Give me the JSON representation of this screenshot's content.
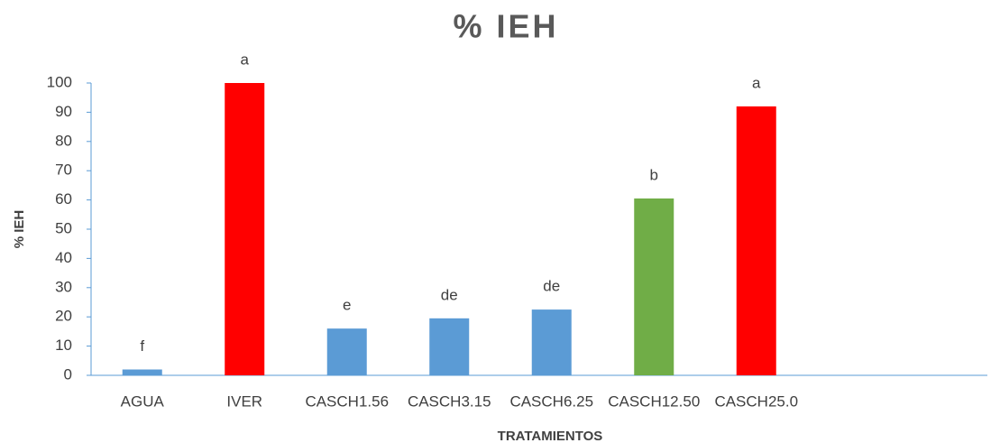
{
  "chart_data": {
    "type": "bar",
    "title": "% IEH",
    "x_label": "TRATAMIENTOS",
    "y_label": "% IEH",
    "categories": [
      "AGUA",
      "IVER",
      "CASCH1.56",
      "CASCH3.15",
      "CASCH6.25",
      "CASCH12.50",
      "CASCH25.0"
    ],
    "values": [
      2,
      100,
      16,
      19.5,
      22.5,
      60.5,
      92
    ],
    "annotations": [
      "f",
      "a",
      "e",
      "de",
      "de",
      "b",
      "a"
    ],
    "colors": [
      "#5b9bd5",
      "#ff0000",
      "#5b9bd5",
      "#5b9bd5",
      "#5b9bd5",
      "#70ad47",
      "#ff0000"
    ],
    "ylim": [
      0,
      100
    ],
    "yticks": [
      0,
      10,
      20,
      30,
      40,
      50,
      60,
      70,
      80,
      90,
      100
    ],
    "grid": false
  }
}
